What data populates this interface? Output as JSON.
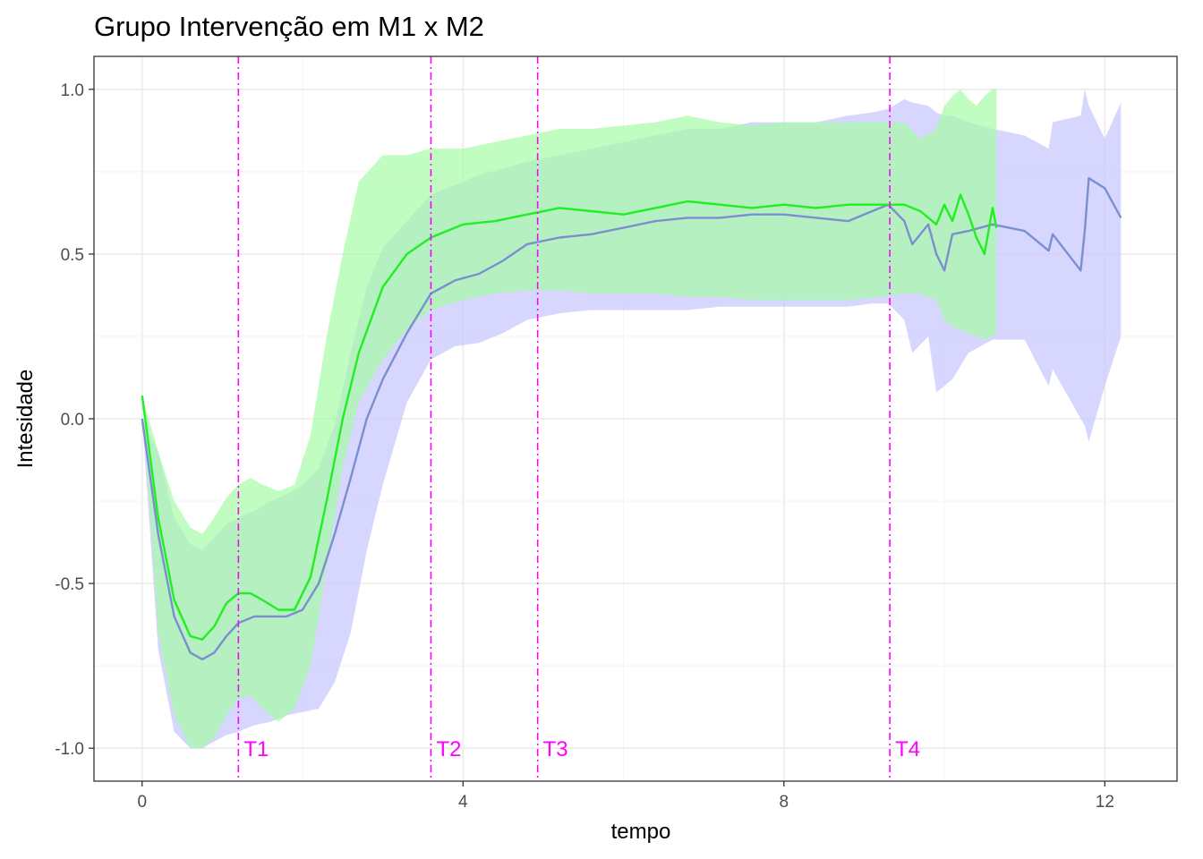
{
  "chart_data": {
    "type": "line",
    "title": "Grupo Intervenção em M1 x M2",
    "xlabel": "tempo",
    "ylabel": "Intesidade",
    "xlim": [
      -0.6,
      12.9
    ],
    "ylim": [
      -1.1,
      1.1
    ],
    "x_ticks": [
      0,
      4,
      8,
      12
    ],
    "y_ticks": [
      -1.0,
      -0.5,
      0.0,
      0.5,
      1.0
    ],
    "x_tick_labels": [
      "0",
      "4",
      "8",
      "12"
    ],
    "y_tick_labels": [
      "-1.0",
      "-0.5",
      "0.0",
      "0.5",
      "1.0"
    ],
    "grid": true,
    "legend": "none",
    "colors": {
      "green_line": "#22ee22",
      "green_band": "#a6fba6",
      "blue_line": "#7b8fd0",
      "blue_band": "#c8c8ff",
      "vlines": "#ff00ff"
    },
    "vertical_lines": [
      {
        "label": "T1",
        "x": 1.2
      },
      {
        "label": "T2",
        "x": 3.6
      },
      {
        "label": "T3",
        "x": 4.93
      },
      {
        "label": "T4",
        "x": 9.32
      }
    ],
    "series": [
      {
        "x": [
          0,
          0.2,
          0.4,
          0.6,
          0.75,
          0.9,
          1.05,
          1.2,
          1.35,
          1.5,
          1.7,
          1.9,
          2.1,
          2.3,
          2.5,
          2.7,
          3.0,
          3.3,
          3.6,
          4.0,
          4.4,
          4.8,
          5.2,
          5.6,
          6.0,
          6.4,
          6.8,
          7.2,
          7.6,
          8.0,
          8.4,
          8.8,
          9.2,
          9.5,
          9.7,
          9.9,
          10.0,
          10.1,
          10.2,
          10.3,
          10.4,
          10.5,
          10.6,
          10.65
        ],
        "y": [
          0.07,
          -0.3,
          -0.55,
          -0.66,
          -0.67,
          -0.63,
          -0.56,
          -0.53,
          -0.53,
          -0.55,
          -0.58,
          -0.58,
          -0.48,
          -0.25,
          0.0,
          0.2,
          0.4,
          0.5,
          0.55,
          0.59,
          0.6,
          0.62,
          0.64,
          0.63,
          0.62,
          0.64,
          0.66,
          0.65,
          0.64,
          0.65,
          0.64,
          0.65,
          0.65,
          0.65,
          0.63,
          0.59,
          0.65,
          0.6,
          0.68,
          0.62,
          0.55,
          0.5,
          0.64,
          0.58
        ],
        "lower": [
          0.07,
          -0.65,
          -0.9,
          -1.0,
          -1.0,
          -0.97,
          -0.9,
          -0.85,
          -0.84,
          -0.88,
          -0.92,
          -0.88,
          -0.75,
          -0.45,
          -0.15,
          0.05,
          0.18,
          0.27,
          0.33,
          0.36,
          0.38,
          0.39,
          0.39,
          0.38,
          0.38,
          0.38,
          0.37,
          0.37,
          0.36,
          0.36,
          0.36,
          0.36,
          0.37,
          0.38,
          0.38,
          0.36,
          0.3,
          0.28,
          0.27,
          0.26,
          0.25,
          0.24,
          0.25,
          0.26
        ],
        "upper": [
          0.07,
          -0.1,
          -0.25,
          -0.33,
          -0.35,
          -0.3,
          -0.24,
          -0.2,
          -0.18,
          -0.2,
          -0.22,
          -0.2,
          -0.05,
          0.25,
          0.5,
          0.72,
          0.8,
          0.8,
          0.82,
          0.82,
          0.84,
          0.86,
          0.88,
          0.88,
          0.89,
          0.9,
          0.92,
          0.9,
          0.89,
          0.9,
          0.9,
          0.9,
          0.9,
          0.9,
          0.85,
          0.88,
          0.95,
          0.98,
          1.0,
          0.97,
          0.95,
          0.98,
          1.0,
          1.0
        ]
      },
      {
        "x": [
          0,
          0.2,
          0.4,
          0.6,
          0.75,
          0.9,
          1.05,
          1.2,
          1.4,
          1.6,
          1.8,
          2.0,
          2.2,
          2.4,
          2.6,
          2.8,
          3.0,
          3.3,
          3.6,
          3.9,
          4.2,
          4.5,
          4.8,
          5.2,
          5.6,
          6.0,
          6.4,
          6.8,
          7.2,
          7.6,
          8.0,
          8.4,
          8.8,
          9.1,
          9.3,
          9.5,
          9.6,
          9.8,
          9.9,
          10.0,
          10.1,
          10.3,
          10.6,
          11.0,
          11.3,
          11.35,
          11.7,
          11.75,
          11.8,
          12.0,
          12.2
        ],
        "y": [
          0.0,
          -0.35,
          -0.6,
          -0.71,
          -0.73,
          -0.71,
          -0.66,
          -0.62,
          -0.6,
          -0.6,
          -0.6,
          -0.58,
          -0.5,
          -0.35,
          -0.18,
          0.0,
          0.12,
          0.26,
          0.38,
          0.42,
          0.44,
          0.48,
          0.53,
          0.55,
          0.56,
          0.58,
          0.6,
          0.61,
          0.61,
          0.62,
          0.62,
          0.61,
          0.6,
          0.63,
          0.65,
          0.6,
          0.53,
          0.59,
          0.5,
          0.45,
          0.56,
          0.57,
          0.59,
          0.57,
          0.51,
          0.56,
          0.45,
          0.57,
          0.73,
          0.7,
          0.61
        ],
        "lower": [
          0.0,
          -0.7,
          -0.95,
          -1.0,
          -1.0,
          -0.98,
          -0.96,
          -0.95,
          -0.93,
          -0.92,
          -0.9,
          -0.89,
          -0.88,
          -0.8,
          -0.65,
          -0.4,
          -0.2,
          0.05,
          0.18,
          0.22,
          0.23,
          0.26,
          0.3,
          0.32,
          0.33,
          0.33,
          0.33,
          0.33,
          0.34,
          0.34,
          0.34,
          0.34,
          0.34,
          0.35,
          0.35,
          0.3,
          0.2,
          0.25,
          0.08,
          0.1,
          0.12,
          0.2,
          0.24,
          0.24,
          0.1,
          0.15,
          0.0,
          -0.02,
          -0.07,
          0.1,
          0.25
        ],
        "upper": [
          0.0,
          -0.1,
          -0.3,
          -0.38,
          -0.4,
          -0.36,
          -0.32,
          -0.3,
          -0.28,
          -0.25,
          -0.23,
          -0.2,
          -0.15,
          -0.02,
          0.2,
          0.4,
          0.52,
          0.6,
          0.68,
          0.71,
          0.74,
          0.76,
          0.78,
          0.8,
          0.82,
          0.84,
          0.86,
          0.88,
          0.88,
          0.9,
          0.9,
          0.9,
          0.92,
          0.93,
          0.94,
          0.97,
          0.96,
          0.95,
          0.93,
          0.92,
          0.92,
          0.9,
          0.88,
          0.86,
          0.82,
          0.9,
          0.92,
          1.0,
          0.95,
          0.85,
          0.96
        ]
      }
    ]
  }
}
